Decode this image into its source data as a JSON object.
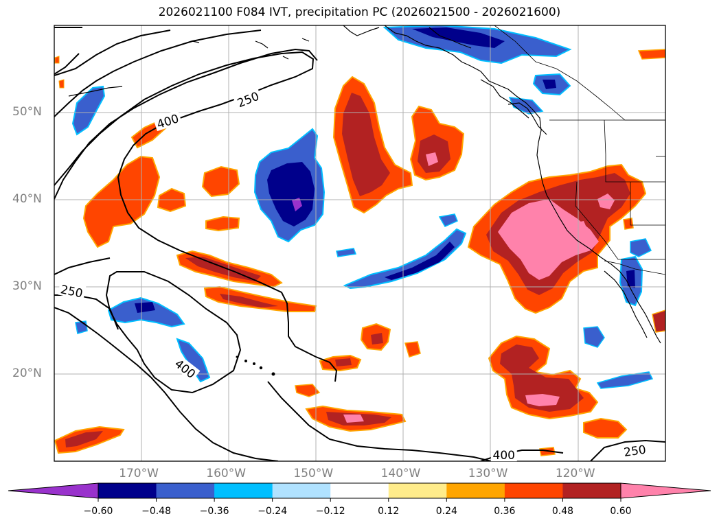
{
  "title": "2026021100 F084 IVT, precipitation PC (2026021500 - 2026021600)",
  "map": {
    "lon_range": [
      -180,
      -110
    ],
    "lat_range": [
      10,
      60
    ],
    "lat_ticks": [
      {
        "value": 50,
        "label": "50°N"
      },
      {
        "value": 40,
        "label": "40°N"
      },
      {
        "value": 30,
        "label": "30°N"
      },
      {
        "value": 20,
        "label": "20°N"
      }
    ],
    "lon_ticks": [
      {
        "value": -170,
        "label": "170°W"
      },
      {
        "value": -160,
        "label": "160°W"
      },
      {
        "value": -150,
        "label": "150°W"
      },
      {
        "value": -140,
        "label": "140°W"
      },
      {
        "value": -130,
        "label": "130°W"
      },
      {
        "value": -120,
        "label": "120°W"
      }
    ],
    "contour_labels": [
      {
        "text": "250",
        "lon": -157.8,
        "lat": 51.5,
        "angle": -22
      },
      {
        "text": "400",
        "lon": -167,
        "lat": 49.0,
        "angle": -18
      },
      {
        "text": "250",
        "lon": -178,
        "lat": 29.5,
        "angle": 12
      },
      {
        "text": "400",
        "lon": -165,
        "lat": 20.6,
        "angle": 38
      },
      {
        "text": "400",
        "lon": -128.5,
        "lat": 10.7,
        "angle": 0
      },
      {
        "text": "250",
        "lon": -113.5,
        "lat": 11.2,
        "angle": -8
      }
    ]
  },
  "colorbar": {
    "ticks": [
      "−0.60",
      "−0.48",
      "−0.36",
      "−0.24",
      "−0.12",
      "0.12",
      "0.24",
      "0.36",
      "0.48",
      "0.60"
    ],
    "colors": [
      "#9932cc",
      "#00008b",
      "#3a5fcd",
      "#00bfff",
      "#b0e2ff",
      "#ffffff",
      "#ffec8b",
      "#ffa500",
      "#ff4500",
      "#b22222",
      "#ff82ab"
    ]
  }
}
